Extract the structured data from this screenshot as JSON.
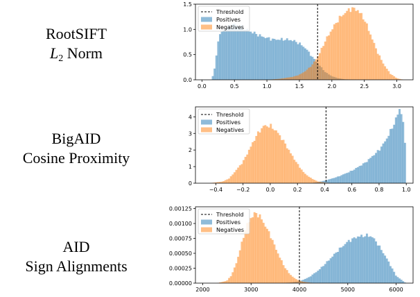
{
  "rows": [
    {
      "line1": "RootSIFT",
      "line2_italic": "L",
      "line2_sub": "2",
      "line2_rest": " Norm"
    },
    {
      "line1": "BigAID",
      "line2": "Cosine Proximity"
    },
    {
      "line1": "AID",
      "line2": "Sign Alignments"
    }
  ],
  "colors": {
    "positives": "#1f77b4",
    "negatives": "#ff7f0e",
    "threshold": "#000000"
  },
  "chart_data": [
    {
      "type": "histogram",
      "legend": [
        "Threshold",
        "Positives",
        "Negatives"
      ],
      "legend_position": "top-left",
      "xlim": [
        -0.1,
        3.25
      ],
      "ylim": [
        0,
        1.5
      ],
      "xticks": [
        0.0,
        0.5,
        1.0,
        1.5,
        2.0,
        2.5,
        3.0
      ],
      "xtick_labels": [
        "0.0",
        "0.5",
        "1.0",
        "1.5",
        "2.0",
        "2.5",
        "3.0"
      ],
      "yticks": [
        0.0,
        0.5,
        1.0,
        1.5
      ],
      "ytick_labels": [
        "0.0",
        "0.5",
        "1.0",
        "1.5"
      ],
      "threshold": 1.78,
      "series": [
        {
          "name": "Positives",
          "x": [
            0.15,
            0.2,
            0.25,
            0.3,
            0.4,
            0.5,
            0.6,
            0.7,
            0.8,
            0.9,
            1.0,
            1.1,
            1.2,
            1.3,
            1.4,
            1.5,
            1.6,
            1.7,
            1.8,
            1.9,
            2.0,
            2.1,
            2.2,
            2.4
          ],
          "y": [
            0.0,
            0.25,
            0.8,
            0.95,
            1.05,
            1.1,
            1.05,
            0.98,
            0.93,
            0.87,
            0.83,
            0.8,
            0.8,
            0.8,
            0.78,
            0.72,
            0.62,
            0.45,
            0.3,
            0.15,
            0.07,
            0.03,
            0.01,
            0.0
          ]
        },
        {
          "name": "Negatives",
          "x": [
            1.0,
            1.2,
            1.4,
            1.5,
            1.6,
            1.7,
            1.8,
            1.9,
            2.0,
            2.1,
            2.2,
            2.3,
            2.4,
            2.5,
            2.6,
            2.7,
            2.8,
            2.9,
            3.0,
            3.1
          ],
          "y": [
            0.0,
            0.02,
            0.06,
            0.1,
            0.18,
            0.3,
            0.5,
            0.78,
            1.0,
            1.2,
            1.33,
            1.42,
            1.38,
            1.2,
            0.88,
            0.55,
            0.3,
            0.12,
            0.03,
            0.0
          ]
        }
      ]
    },
    {
      "type": "histogram",
      "legend": [
        "Threshold",
        "Positives",
        "Negatives"
      ],
      "legend_position": "top-left",
      "xlim": [
        -0.55,
        1.05
      ],
      "ylim": [
        0,
        4.6
      ],
      "xticks": [
        -0.4,
        -0.2,
        0.0,
        0.2,
        0.4,
        0.6,
        0.8,
        1.0
      ],
      "xtick_labels": [
        "−0.4",
        "−0.2",
        "0.0",
        "0.2",
        "0.4",
        "0.6",
        "0.8",
        "1.0"
      ],
      "yticks": [
        0,
        1,
        2,
        3,
        4
      ],
      "ytick_labels": [
        "0",
        "1",
        "2",
        "3",
        "4"
      ],
      "threshold": 0.41,
      "series": [
        {
          "name": "Positives",
          "x": [
            0.3,
            0.4,
            0.5,
            0.6,
            0.7,
            0.8,
            0.85,
            0.9,
            0.93,
            0.95,
            0.97,
            0.99,
            1.0
          ],
          "y": [
            0.0,
            0.15,
            0.4,
            0.75,
            1.25,
            2.0,
            2.6,
            3.4,
            4.0,
            4.45,
            4.2,
            2.4,
            0.0
          ]
        },
        {
          "name": "Negatives",
          "x": [
            -0.45,
            -0.35,
            -0.3,
            -0.2,
            -0.15,
            -0.1,
            -0.05,
            0.0,
            0.05,
            0.1,
            0.15,
            0.2,
            0.25,
            0.3,
            0.35,
            0.4,
            0.45
          ],
          "y": [
            0.0,
            0.1,
            0.3,
            1.3,
            2.1,
            2.9,
            3.45,
            3.45,
            3.1,
            2.5,
            1.8,
            1.15,
            0.6,
            0.3,
            0.1,
            0.04,
            0.0
          ]
        }
      ]
    },
    {
      "type": "histogram",
      "legend": [
        "Threshold",
        "Positives",
        "Negatives"
      ],
      "legend_position": "top-left",
      "xlim": [
        1850,
        6350
      ],
      "ylim": [
        0,
        0.00128
      ],
      "xticks": [
        2000,
        3000,
        4000,
        5000,
        6000
      ],
      "xtick_labels": [
        "2000",
        "3000",
        "4000",
        "5000",
        "6000"
      ],
      "yticks": [
        0.0,
        0.00025,
        0.0005,
        0.00075,
        0.001,
        0.00125
      ],
      "ytick_labels": [
        "0.00000",
        "0.00025",
        "0.00050",
        "0.00075",
        "0.00100",
        "0.00125"
      ],
      "threshold": 4000,
      "series": [
        {
          "name": "Positives",
          "x": [
            3600,
            3800,
            4000,
            4200,
            4400,
            4600,
            4800,
            5000,
            5200,
            5400,
            5500,
            5600,
            5800,
            6000,
            6200
          ],
          "y": [
            0.0,
            1e-05,
            3e-05,
            0.0001,
            0.00022,
            0.00038,
            0.00055,
            0.0007,
            0.00078,
            0.0008,
            0.00078,
            0.00068,
            0.00042,
            0.00012,
            0.0
          ]
        },
        {
          "name": "Negatives",
          "x": [
            2300,
            2500,
            2600,
            2700,
            2800,
            2900,
            3000,
            3100,
            3200,
            3300,
            3400,
            3500,
            3600,
            3700,
            3800,
            3900,
            4000,
            4100,
            4200,
            4300
          ],
          "y": [
            0.0,
            4e-05,
            0.00014,
            0.00035,
            0.00065,
            0.00095,
            0.0011,
            0.00118,
            0.0011,
            0.00095,
            0.0008,
            0.0006,
            0.00042,
            0.00026,
            0.00015,
            8e-05,
            4e-05,
            2e-05,
            1e-05,
            0.0
          ]
        }
      ]
    }
  ]
}
